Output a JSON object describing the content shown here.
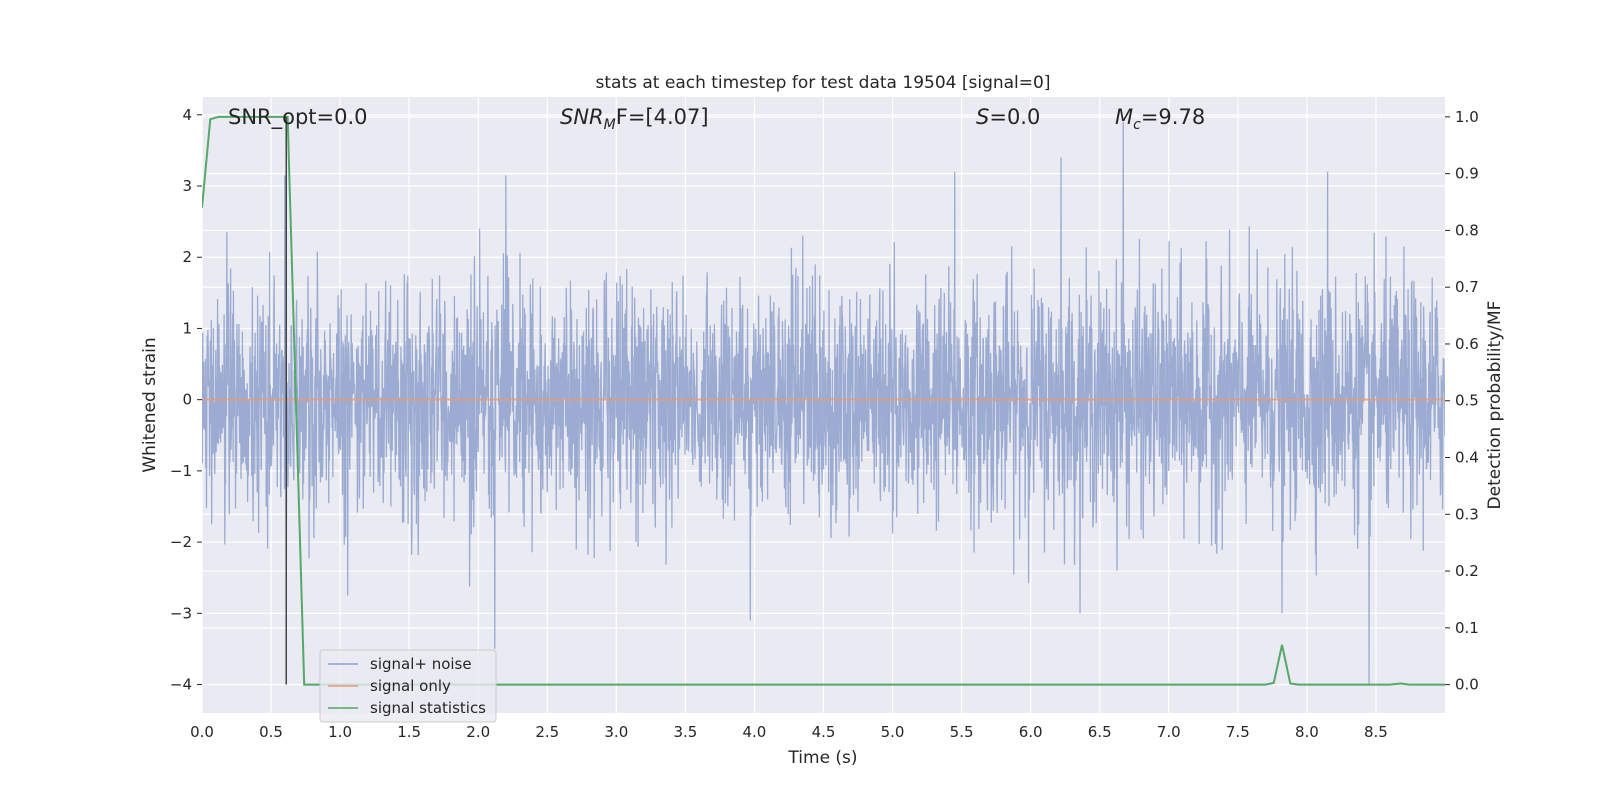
{
  "chart_data": {
    "type": "line",
    "title": "stats at each timestep for test data 19504 [signal=0]",
    "xlabel": "Time (s)",
    "ylabel": "Whitened strain",
    "y2label": "Detection probability/MF",
    "xlim": [
      0,
      9.0
    ],
    "ylim": [
      -4.4,
      4.25
    ],
    "y2lim": [
      -0.05,
      1.035
    ],
    "x_ticks": [
      0.0,
      0.5,
      1.0,
      1.5,
      2.0,
      2.5,
      3.0,
      3.5,
      4.0,
      4.5,
      5.0,
      5.5,
      6.0,
      6.5,
      7.0,
      7.5,
      8.0,
      8.5
    ],
    "x_tick_labels": [
      "0.0",
      "0.5",
      "1.0",
      "1.5",
      "2.0",
      "2.5",
      "3.0",
      "3.5",
      "4.0",
      "4.5",
      "5.0",
      "5.5",
      "6.0",
      "6.5",
      "7.0",
      "7.5",
      "8.0",
      "8.5"
    ],
    "y_ticks": [
      -4,
      -3,
      -2,
      -1,
      0,
      1,
      2,
      3,
      4
    ],
    "y_tick_labels": [
      "−4",
      "−3",
      "−2",
      "−1",
      "0",
      "1",
      "2",
      "3",
      "4"
    ],
    "y2_ticks": [
      0.0,
      0.1,
      0.2,
      0.3,
      0.4,
      0.5,
      0.6,
      0.7,
      0.8,
      0.9,
      1.0
    ],
    "y2_tick_labels": [
      "0.0",
      "0.1",
      "0.2",
      "0.3",
      "0.4",
      "0.5",
      "0.6",
      "0.7",
      "0.8",
      "0.9",
      "1.0"
    ],
    "grid": true,
    "legend_position": "lower-left",
    "annotations": {
      "snr_opt": "SNR_opt=0.0",
      "snr_mf_name": "SNR",
      "snr_mf_sub": "M",
      "snr_mf_rest": "F=[4.07]",
      "s_name": "S",
      "s_rest": "=0.0",
      "mc_name": "M",
      "mc_sub": "c",
      "mc_rest": "=9.78"
    },
    "series": [
      {
        "name": "signal+ noise",
        "color": "#8da0cb",
        "axis": "left",
        "kind": "noise",
        "sample_rate": 400,
        "sigma": 0.82,
        "peaks": [
          [
            0.6,
            3.15
          ],
          [
            0.61,
            -3.1
          ],
          [
            2.12,
            -3.5
          ],
          [
            2.2,
            3.15
          ],
          [
            3.97,
            -3.1
          ],
          [
            5.45,
            3.2
          ],
          [
            6.22,
            3.4
          ],
          [
            6.67,
            3.9
          ],
          [
            8.45,
            -4.0
          ],
          [
            8.15,
            3.2
          ],
          [
            7.82,
            -3.0
          ]
        ]
      },
      {
        "name": "signal only",
        "color": "#e5997a",
        "axis": "left",
        "values": [
          [
            0.0,
            0.0
          ],
          [
            9.0,
            0.0
          ]
        ]
      },
      {
        "name": "signal statistics",
        "color": "#55a868",
        "axis": "right",
        "values": [
          [
            0.0,
            0.84
          ],
          [
            0.06,
            0.996
          ],
          [
            0.12,
            1.0
          ],
          [
            0.3,
            1.0
          ],
          [
            0.5,
            1.0
          ],
          [
            0.62,
            1.0
          ],
          [
            0.74,
            0.0
          ],
          [
            7.7,
            0.0
          ],
          [
            7.76,
            0.003
          ],
          [
            7.82,
            0.07
          ],
          [
            7.88,
            0.002
          ],
          [
            7.94,
            0.0
          ],
          [
            8.6,
            0.0
          ],
          [
            8.68,
            0.002
          ],
          [
            8.74,
            0.0
          ],
          [
            9.0,
            0.0
          ]
        ]
      }
    ],
    "marker_line": {
      "x": 0.61,
      "y_from": -4.0,
      "y_to": 1.0,
      "color": "#444444"
    }
  }
}
